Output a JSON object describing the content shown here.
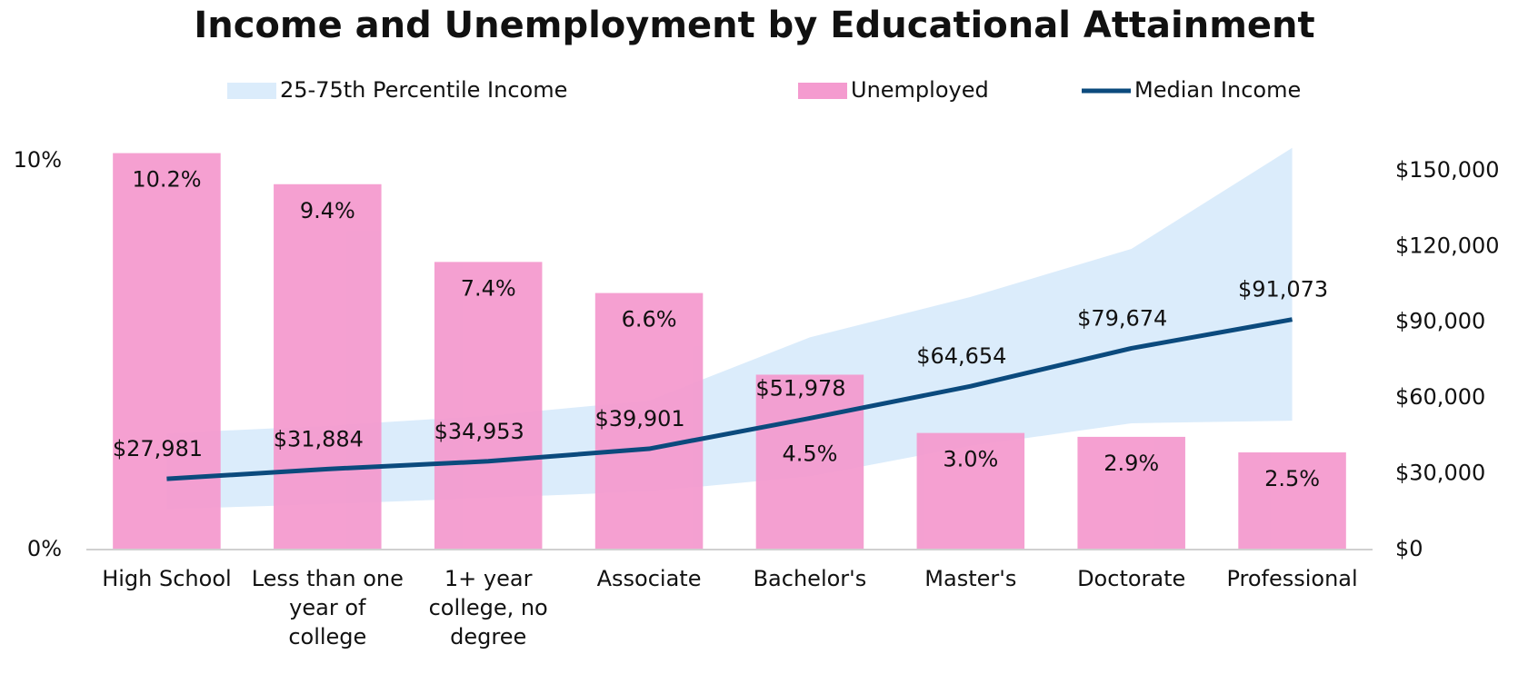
{
  "chart_data": {
    "type": "bar",
    "title": "Income and Unemployment by Educational Attainment",
    "categories": [
      "High School",
      "Less than one year of college",
      "1+ year college, no degree",
      "Associate",
      "Bachelor's",
      "Master's",
      "Doctorate",
      "Professional"
    ],
    "ylim": [
      0,
      10.4
    ],
    "yticks": [
      {
        "value": 0,
        "label": "0%"
      },
      {
        "value": 10,
        "label": "10%"
      }
    ],
    "y2lim": [
      0,
      160000
    ],
    "y2ticks": [
      {
        "value": 0,
        "label": "$0"
      },
      {
        "value": 30000,
        "label": "$30,000"
      },
      {
        "value": 60000,
        "label": "$60,000"
      },
      {
        "value": 90000,
        "label": "$90,000"
      },
      {
        "value": 120000,
        "label": "$120,000"
      },
      {
        "value": 150000,
        "label": "$150,000"
      }
    ],
    "series": [
      {
        "name": "25-75th Percentile Income",
        "type": "band",
        "axis": "y2",
        "color": "#dbecfb",
        "low": [
          16000,
          18000,
          20500,
          23000,
          29000,
          41000,
          50000,
          51000
        ],
        "high": [
          46000,
          49000,
          53000,
          59000,
          84000,
          100000,
          119000,
          159000
        ]
      },
      {
        "name": "Unemployed",
        "type": "bar",
        "color": "#f49bcf",
        "values": [
          10.2,
          9.4,
          7.4,
          6.6,
          4.5,
          3.0,
          2.9,
          2.5
        ],
        "value_labels": [
          "10.2%",
          "9.4%",
          "7.4%",
          "6.6%",
          "4.5%",
          "3.0%",
          "2.9%",
          "2.5%"
        ]
      },
      {
        "name": "Median Income",
        "type": "line",
        "axis": "y2",
        "color": "#0b4a7d",
        "values": [
          27981,
          31884,
          34953,
          39901,
          51978,
          64654,
          79674,
          91073
        ],
        "value_labels": [
          "$27,981",
          "$31,884",
          "$34,953",
          "$39,901",
          "$51,978",
          "$64,654",
          "$79,674",
          "$91,073"
        ]
      }
    ]
  }
}
